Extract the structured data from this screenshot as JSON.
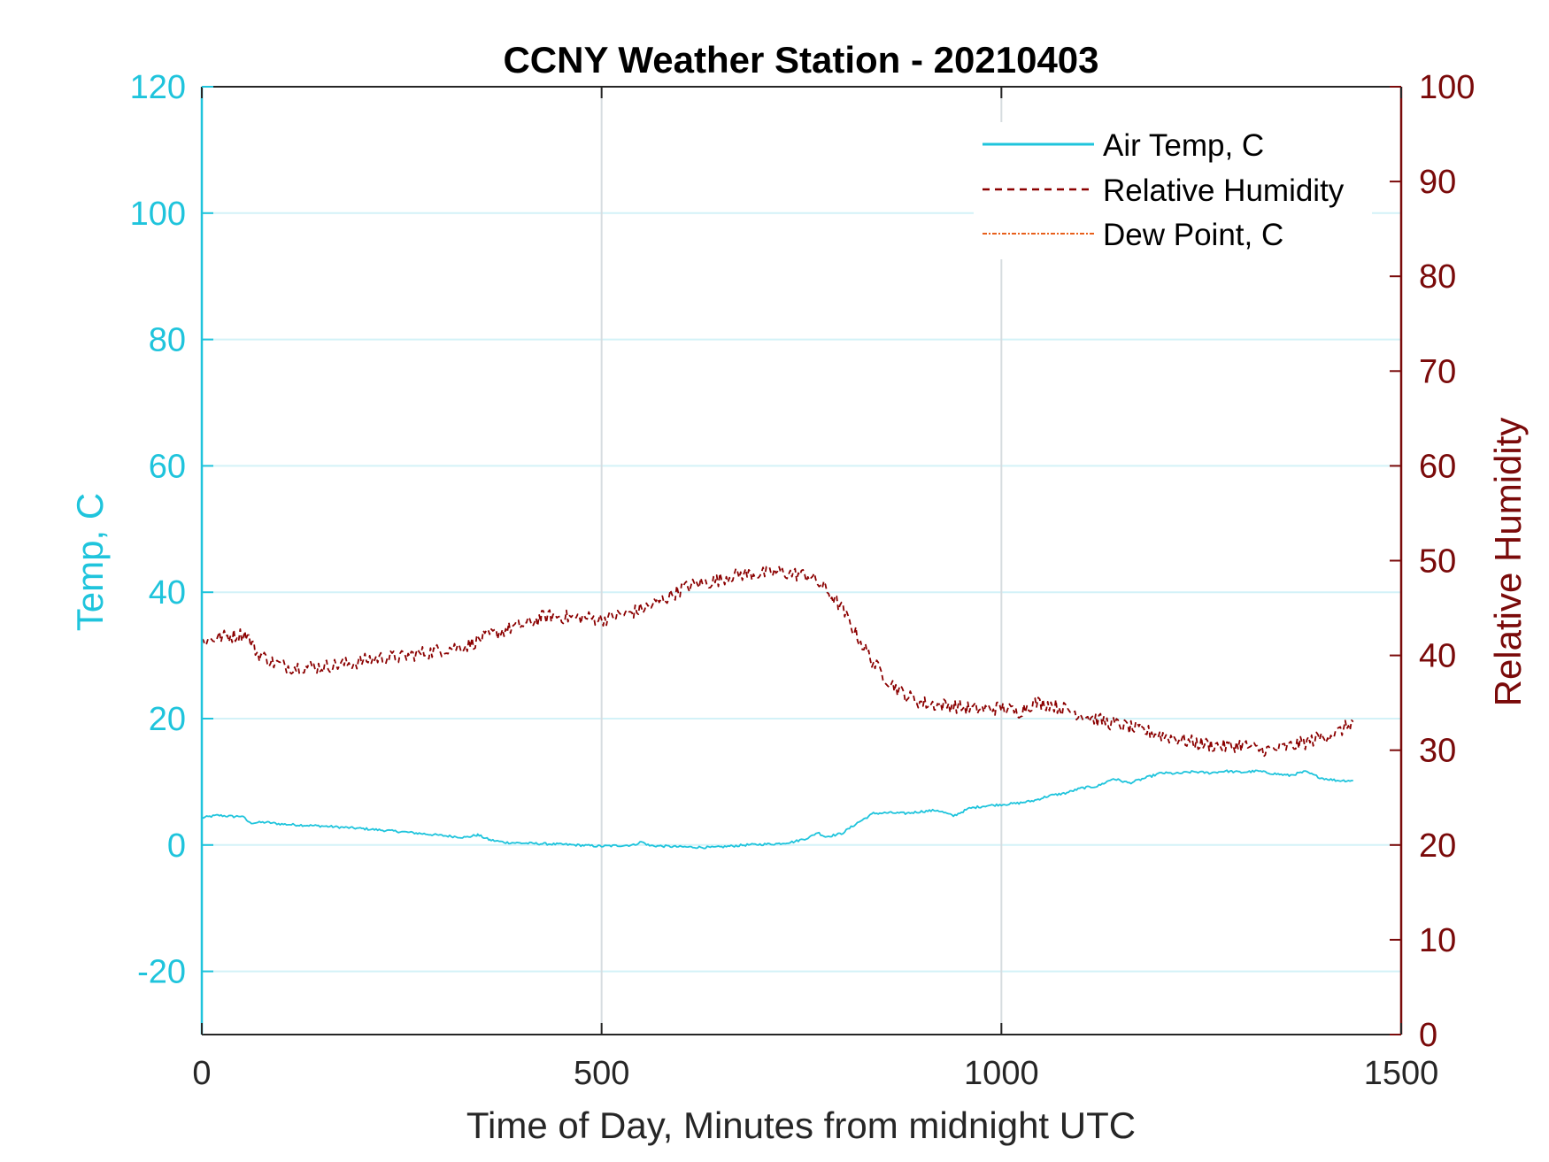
{
  "chart_data": {
    "type": "line",
    "title": "CCNY Weather Station - 20210403",
    "xlabel": "Time of Day, Minutes from midnight UTC",
    "ylabel_left": "Temp, C",
    "ylabel_right": "Relative Humidity",
    "xlim": [
      0,
      1500
    ],
    "ylim_left": [
      -30,
      120
    ],
    "ylim_right": [
      0,
      100
    ],
    "x_ticks": [
      0,
      500,
      1000,
      1500
    ],
    "x_tick_labels": [
      "0",
      "500",
      "1000",
      "1500"
    ],
    "y_left_ticks": [
      -20,
      0,
      20,
      40,
      60,
      80,
      100,
      120
    ],
    "y_left_tick_labels": [
      "-20",
      "0",
      "20",
      "40",
      "60",
      "80",
      "100",
      "120"
    ],
    "y_right_ticks": [
      0,
      10,
      20,
      30,
      40,
      50,
      60,
      70,
      80,
      90,
      100
    ],
    "y_right_tick_labels": [
      "0",
      "10",
      "20",
      "30",
      "40",
      "50",
      "60",
      "70",
      "80",
      "90",
      "100"
    ],
    "grid": true,
    "legend_position": "top-right",
    "colors": {
      "left_axis": "#1fc4dc",
      "right_axis": "#7a0a0a",
      "temp": "#1fc4dc",
      "rh": "#8b0000",
      "dew": "#e8601c",
      "grid_h": "#d3f2f8",
      "grid_v": "#d6dce0"
    },
    "series": [
      {
        "name": "Air Temp, C",
        "axis": "left",
        "style": "solid",
        "x": [
          0,
          20,
          40,
          50,
          60,
          80,
          100,
          150,
          200,
          250,
          300,
          330,
          345,
          360,
          380,
          400,
          450,
          500,
          540,
          550,
          560,
          600,
          640,
          680,
          720,
          740,
          760,
          770,
          780,
          800,
          820,
          840,
          860,
          880,
          900,
          920,
          940,
          960,
          980,
          1000,
          1020,
          1040,
          1060,
          1080,
          1100,
          1120,
          1140,
          1160,
          1180,
          1200,
          1220,
          1240,
          1260,
          1280,
          1300,
          1320,
          1340,
          1360,
          1380,
          1400,
          1420,
          1440
        ],
        "y": [
          4.3,
          4.7,
          4.5,
          4.6,
          3.5,
          3.6,
          3.3,
          3.0,
          2.6,
          2.1,
          1.5,
          1.2,
          1.6,
          0.8,
          0.4,
          0.3,
          0.1,
          -0.2,
          0.0,
          0.5,
          -0.1,
          -0.3,
          -0.4,
          0.0,
          0.2,
          0.5,
          1.2,
          2.0,
          1.3,
          1.8,
          3.5,
          5.0,
          5.1,
          5.0,
          5.3,
          5.5,
          4.6,
          5.8,
          6.2,
          6.4,
          6.6,
          7.0,
          7.8,
          8.2,
          9.0,
          9.3,
          10.5,
          9.8,
          10.6,
          11.4,
          11.3,
          11.6,
          11.4,
          11.7,
          11.5,
          11.7,
          11.3,
          11.0,
          11.6,
          10.6,
          10.2,
          10.2
        ]
      },
      {
        "name": "Relative Humidity",
        "axis": "right",
        "style": "dashed",
        "x": [
          0,
          20,
          40,
          55,
          70,
          90,
          110,
          130,
          150,
          170,
          190,
          210,
          230,
          250,
          270,
          290,
          310,
          330,
          350,
          370,
          390,
          410,
          425,
          440,
          460,
          480,
          500,
          520,
          540,
          560,
          580,
          600,
          620,
          640,
          660,
          680,
          700,
          720,
          740,
          760,
          780,
          800,
          820,
          840,
          860,
          880,
          900,
          920,
          940,
          960,
          980,
          1000,
          1020,
          1040,
          1060,
          1080,
          1100,
          1120,
          1140,
          1160,
          1180,
          1200,
          1220,
          1240,
          1260,
          1280,
          1300,
          1320,
          1340,
          1360,
          1380,
          1400,
          1420,
          1440
        ],
        "y": [
          41.5,
          41.9,
          42.1,
          42.3,
          40.2,
          39.2,
          38.8,
          38.8,
          38.8,
          39.0,
          39.2,
          39.6,
          39.8,
          39.8,
          40.2,
          40.4,
          40.8,
          41.0,
          41.8,
          42.4,
          43.0,
          43.4,
          44.0,
          44.2,
          44.0,
          44.0,
          43.8,
          44.2,
          44.6,
          45.2,
          46.0,
          47.0,
          47.6,
          47.8,
          48.4,
          48.6,
          48.6,
          48.8,
          48.6,
          48.4,
          47.0,
          45.0,
          42.0,
          39.2,
          37.2,
          35.8,
          35.0,
          34.8,
          34.7,
          34.4,
          34.3,
          34.5,
          34.0,
          35.0,
          34.9,
          34.3,
          33.8,
          33.2,
          32.8,
          32.4,
          32.0,
          31.6,
          31.2,
          30.8,
          30.6,
          30.4,
          30.6,
          30.1,
          30.0,
          30.4,
          30.8,
          31.4,
          31.8,
          33.0
        ]
      },
      {
        "name": "Dew Point, C",
        "axis": "left",
        "style": "dashdot",
        "x": [],
        "y": []
      }
    ]
  }
}
